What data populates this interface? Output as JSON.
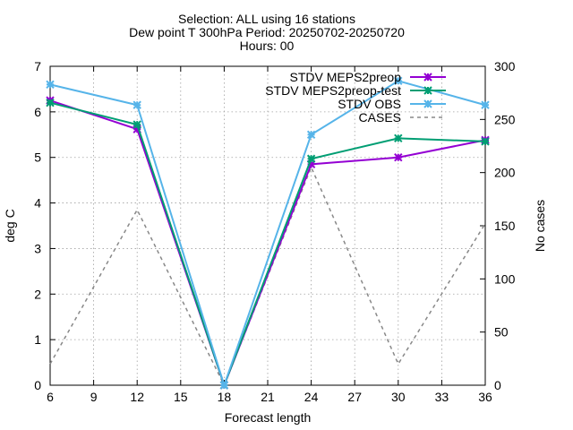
{
  "chart_data": {
    "type": "line",
    "title": {
      "line1": "Selection: ALL using    16 stations",
      "line2": "Dew point T 300hPa   Period: 20250702-20250720",
      "line3": "Hours: 00"
    },
    "xlabel": "Forecast length",
    "ylabel": "deg C",
    "y2label": "No cases",
    "xlim": [
      6,
      36
    ],
    "ylim": [
      0,
      7
    ],
    "y2lim": [
      0,
      300
    ],
    "xticks": [
      "6",
      "9",
      "12",
      "15",
      "18",
      "21",
      "24",
      "27",
      "30",
      "33",
      "36"
    ],
    "yticks": [
      "0",
      "1",
      "2",
      "3",
      "4",
      "5",
      "6",
      "7"
    ],
    "y2ticks": [
      "0",
      "50",
      "100",
      "150",
      "200",
      "250",
      "300"
    ],
    "grid": true,
    "legend_position": "top-right",
    "series": [
      {
        "name": "STDV MEPS2preop",
        "color": "#9400d3",
        "marker": "x-star",
        "axis": "y",
        "x": [
          6,
          12,
          18,
          24,
          30,
          36
        ],
        "values": [
          6.25,
          5.62,
          0.0,
          4.85,
          5.0,
          5.38
        ]
      },
      {
        "name": "STDV MEPS2preop-test",
        "color": "#009e73",
        "marker": "x-star",
        "axis": "y",
        "x": [
          6,
          12,
          18,
          24,
          30,
          36
        ],
        "values": [
          6.2,
          5.72,
          0.0,
          4.97,
          5.42,
          5.35
        ]
      },
      {
        "name": "STDV OBS",
        "color": "#56b4e9",
        "marker": "x-star",
        "axis": "y",
        "x": [
          6,
          12,
          18,
          24,
          30,
          36
        ],
        "values": [
          6.6,
          6.15,
          0.0,
          5.5,
          6.68,
          6.15
        ]
      },
      {
        "name": "CASES",
        "color": "#888888",
        "marker": "none",
        "dashed": true,
        "axis": "y2",
        "x": [
          6,
          12,
          18,
          24,
          30,
          36
        ],
        "values": [
          20,
          165,
          0,
          205,
          20,
          152
        ]
      }
    ]
  }
}
